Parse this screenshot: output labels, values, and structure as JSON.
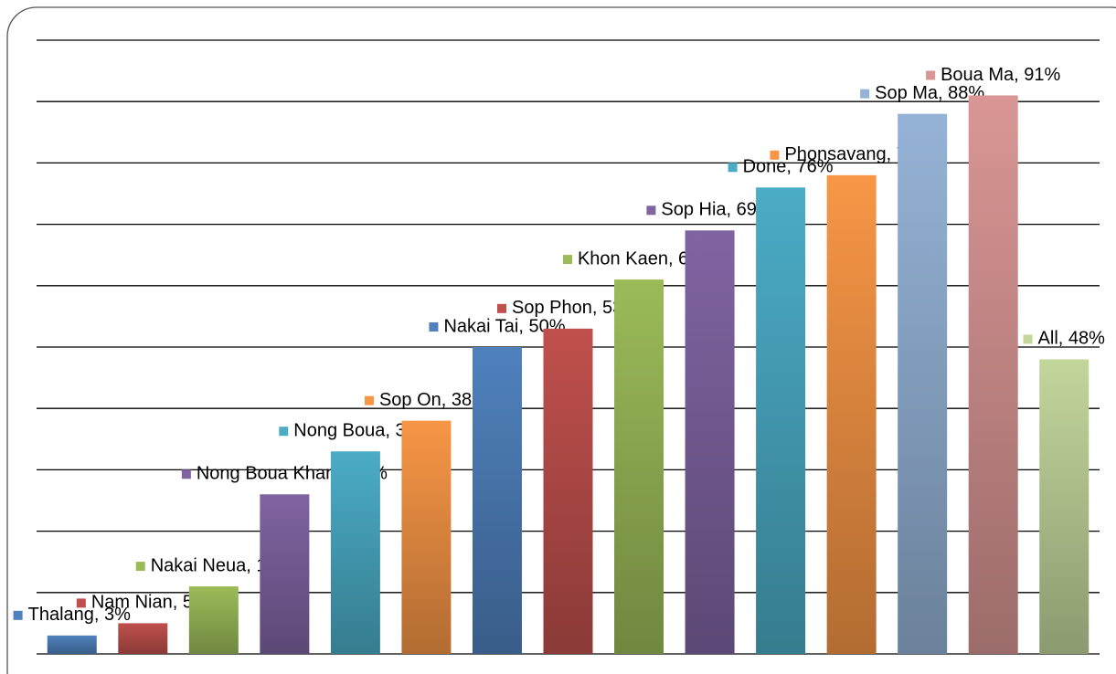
{
  "chart_data": {
    "type": "bar",
    "categories": [
      "Thalang",
      "Nam Nian",
      "Nakai Neua",
      "Nong Boua Kham",
      "Nong Boua",
      "Sop On",
      "Nakai Tai",
      "Sop Phon",
      "Khon Kaen",
      "Sop Hia",
      "Done",
      "Phonsavang",
      "Sop Ma",
      "Boua Ma",
      "All"
    ],
    "values": [
      3,
      5,
      11,
      26,
      33,
      38,
      50,
      53,
      61,
      69,
      76,
      78,
      88,
      91,
      48
    ],
    "value_labels": [
      "Thalang, 3%",
      "Nam Nian, 5%",
      "Nakai Neua, 11%",
      "Nong Boua Kham, 26%",
      "Nong Boua, 33%",
      "Sop On, 38%",
      "Nakai Tai, 50%",
      "Sop Phon, 53%",
      "Khon Kaen, 61%",
      "Sop Hia, 69%",
      "Done, 76%",
      "Phonsavang, 78%",
      "Sop Ma, 88%",
      "Boua Ma, 91%",
      "All, 48%"
    ],
    "colors": [
      "#4f81bd",
      "#c0504d",
      "#9bbb59",
      "#8064a2",
      "#4bacc6",
      "#f79646",
      "#4f81bd",
      "#c0504d",
      "#9bbb59",
      "#8064a2",
      "#4bacc6",
      "#f79646",
      "#95b3d7",
      "#d99694",
      "#c3d69b"
    ],
    "ylim": [
      0,
      100
    ],
    "yticks": [
      0,
      10,
      20,
      30,
      40,
      50,
      60,
      70,
      80,
      90,
      100
    ],
    "grid": true
  }
}
